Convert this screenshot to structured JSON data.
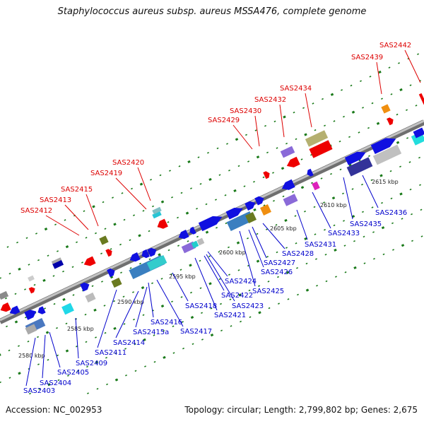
{
  "title": "Staphylococcus aureus subsp. aureus MSSA476, complete genome",
  "footer": {
    "accession": "Accession: NC_002953",
    "topology": "Topology: circular; Length: 2,799,802 bp; Genes: 2,675"
  },
  "colors": {
    "backbone": "#8a8a8a",
    "top_label": "#dd0000",
    "bottom_label": "#0000cc",
    "grid_tick": "#1a7a1a"
  },
  "kbp_ticks": [
    "2580 kbp",
    "2585 kbp",
    "2590 kbp",
    "2595 kbp",
    "2600 kbp",
    "2605 kbp",
    "2610 kbp",
    "2615 kbp"
  ],
  "top_genes": [
    "SAS2412",
    "SAS2413",
    "SAS2415",
    "SAS2419",
    "SAS2420",
    "SAS2429",
    "SAS2430",
    "SAS2432",
    "SAS2434",
    "SAS2439",
    "SAS2442"
  ],
  "bottom_genes": [
    "SAS2403",
    "SAS2404",
    "SAS2405",
    "SAS2409",
    "SAS2411",
    "SAS2414",
    "SAS2415a",
    "SAS2416",
    "SAS2417",
    "SAS2418",
    "SAS2421",
    "SAS2422",
    "SAS2423",
    "SAS2424",
    "SAS2425",
    "SAS2426",
    "SAS2427",
    "SAS2428",
    "SAS2431",
    "SAS2433",
    "SAS2435",
    "SAS2436"
  ]
}
